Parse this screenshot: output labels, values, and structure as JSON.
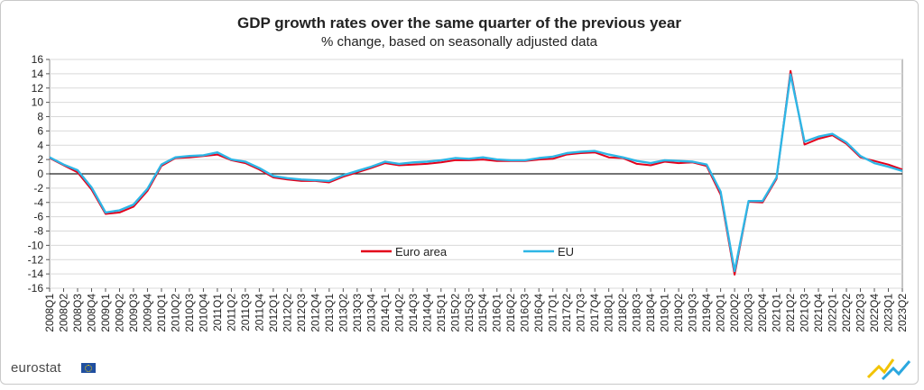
{
  "chart_data": {
    "type": "line",
    "title": "GDP growth rates over the same quarter of the previous year",
    "subtitle": "% change, based on seasonally adjusted data",
    "xlabel": "",
    "ylabel": "",
    "ylim": [
      -16,
      16
    ],
    "yticks": [
      -16,
      -14,
      -12,
      -10,
      -8,
      -6,
      -4,
      -2,
      0,
      2,
      4,
      6,
      8,
      10,
      12,
      14,
      16
    ],
    "grid": true,
    "legend_position": "bottom-center",
    "categories": [
      "2008Q1",
      "2008Q2",
      "2008Q3",
      "2008Q4",
      "2009Q1",
      "2009Q2",
      "2009Q3",
      "2009Q4",
      "2010Q1",
      "2010Q2",
      "2010Q3",
      "2010Q4",
      "2011Q1",
      "2011Q2",
      "2011Q3",
      "2011Q4",
      "2012Q1",
      "2012Q2",
      "2012Q3",
      "2012Q4",
      "2013Q1",
      "2013Q2",
      "2013Q3",
      "2013Q4",
      "2014Q1",
      "2014Q2",
      "2014Q3",
      "2014Q4",
      "2015Q1",
      "2015Q2",
      "2015Q3",
      "2015Q4",
      "2016Q1",
      "2016Q2",
      "2016Q3",
      "2016Q4",
      "2017Q1",
      "2017Q2",
      "2017Q3",
      "2017Q4",
      "2018Q1",
      "2018Q2",
      "2018Q3",
      "2018Q4",
      "2019Q1",
      "2019Q2",
      "2019Q3",
      "2019Q4",
      "2020Q1",
      "2020Q2",
      "2020Q3",
      "2020Q4",
      "2021Q1",
      "2021Q2",
      "2021Q3",
      "2021Q4",
      "2022Q1",
      "2022Q2",
      "2022Q3",
      "2022Q4",
      "2023Q1",
      "2023Q2"
    ],
    "series": [
      {
        "name": "Euro area",
        "color": "#e3001b",
        "values": [
          2.2,
          1.2,
          0.2,
          -2.2,
          -5.6,
          -5.4,
          -4.6,
          -2.4,
          1.1,
          2.2,
          2.3,
          2.5,
          2.7,
          1.9,
          1.5,
          0.6,
          -0.5,
          -0.8,
          -1.0,
          -1.0,
          -1.2,
          -0.4,
          0.2,
          0.8,
          1.5,
          1.2,
          1.3,
          1.4,
          1.6,
          1.9,
          1.9,
          2.0,
          1.8,
          1.8,
          1.8,
          2.0,
          2.1,
          2.7,
          2.9,
          3.0,
          2.3,
          2.2,
          1.4,
          1.2,
          1.7,
          1.5,
          1.6,
          1.1,
          -2.9,
          -14.1,
          -3.9,
          -4.0,
          -0.7,
          14.4,
          4.1,
          4.9,
          5.4,
          4.2,
          2.3,
          1.8,
          1.3,
          0.6
        ]
      },
      {
        "name": "EU",
        "color": "#2eb6e6",
        "values": [
          2.3,
          1.3,
          0.5,
          -1.9,
          -5.4,
          -5.1,
          -4.3,
          -2.1,
          1.3,
          2.3,
          2.5,
          2.6,
          3.0,
          2.0,
          1.7,
          0.8,
          -0.3,
          -0.6,
          -0.8,
          -0.9,
          -1.0,
          -0.2,
          0.4,
          1.0,
          1.7,
          1.4,
          1.6,
          1.7,
          1.9,
          2.2,
          2.1,
          2.3,
          2.0,
          1.9,
          1.9,
          2.2,
          2.4,
          2.9,
          3.1,
          3.2,
          2.7,
          2.3,
          1.8,
          1.5,
          1.9,
          1.8,
          1.7,
          1.3,
          -2.5,
          -13.6,
          -3.8,
          -3.8,
          -0.5,
          13.9,
          4.5,
          5.2,
          5.6,
          4.4,
          2.5,
          1.5,
          1.0,
          0.4
        ]
      }
    ]
  },
  "branding": {
    "logo_text": "eurostat",
    "flag_icon": "eu-flag-icon",
    "corner_icon": "eurostat-corner-logo-icon"
  }
}
